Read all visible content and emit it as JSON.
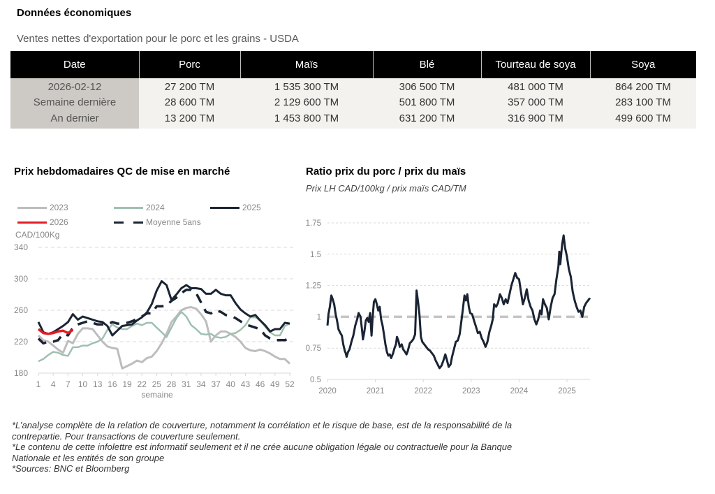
{
  "section_title": "Données économiques",
  "table": {
    "subtitle": "Ventes nettes d'exportation pour le porc et les grains - USDA",
    "headers": [
      "Date",
      "Porc",
      "Maïs",
      "Blé",
      "Tourteau de soya",
      "Soya"
    ],
    "rows": [
      [
        "2026-02-12",
        "27 200 TM",
        "1 535 300 TM",
        "306 500 TM",
        "481 000 TM",
        "864 200 TM"
      ],
      [
        "Semaine dernière",
        "28 600 TM",
        "2 129 600 TM",
        "501 800 TM",
        "357 000 TM",
        "283 100 TM"
      ],
      [
        "An dernier",
        "13 200 TM",
        "1 453 800 TM",
        "631 200 TM",
        "316 900 TM",
        "499 600 TM"
      ]
    ]
  },
  "colors": {
    "series_2023": "#bdbdbd",
    "series_2024": "#9fc0b0",
    "series_2025": "#1a2433",
    "series_2026": "#e31b23",
    "avg_5y": "#1a2433",
    "ref_line": "#c4c4c4",
    "grid": "#d9d9d9",
    "tick_text": "#888888"
  },
  "chart_data": [
    {
      "type": "line",
      "title": "Prix hebdomadaires QC de mise en marché",
      "ylabel": "CAD/100Kg",
      "xlabel": "semaine",
      "ylim": [
        180,
        340
      ],
      "yticks": [
        "340",
        "300",
        "260",
        "220",
        "180"
      ],
      "ytick_values": [
        340,
        300,
        260,
        220,
        180
      ],
      "xlim": [
        1,
        52
      ],
      "xticks": [
        "1",
        "4",
        "7",
        "10",
        "13",
        "16",
        "19",
        "22",
        "25",
        "28",
        "31",
        "34",
        "37",
        "40",
        "43",
        "46",
        "49",
        "52"
      ],
      "xtick_values": [
        1,
        4,
        7,
        10,
        13,
        16,
        19,
        22,
        25,
        28,
        31,
        34,
        37,
        40,
        43,
        46,
        49,
        52
      ],
      "grid": true,
      "legend": [
        {
          "label": "2023",
          "key": "s2023"
        },
        {
          "label": "2024",
          "key": "s2024"
        },
        {
          "label": "2025",
          "key": "s2025"
        },
        {
          "label": "2026",
          "key": "s2026"
        },
        {
          "label": "Moyenne 5ans",
          "key": "avg"
        }
      ],
      "legend_position": "top",
      "series": [
        {
          "name": "2023",
          "key": "s2023",
          "style": "solid",
          "start_week": 1,
          "values": [
            228,
            222,
            220,
            215,
            210,
            206,
            221,
            218,
            230,
            237,
            237,
            236,
            228,
            220,
            214,
            212,
            211,
            186,
            189,
            192,
            196,
            194,
            199,
            201,
            208,
            218,
            230,
            245,
            252,
            260,
            263,
            264,
            262,
            255,
            246,
            220,
            228,
            233,
            233,
            230,
            226,
            220,
            212,
            209,
            208,
            210,
            208,
            205,
            201,
            198,
            198,
            192
          ]
        },
        {
          "name": "2024",
          "key": "s2024",
          "style": "solid",
          "start_week": 1,
          "values": [
            195,
            198,
            203,
            207,
            206,
            203,
            202,
            213,
            213,
            215,
            215,
            218,
            220,
            224,
            235,
            242,
            238,
            236,
            236,
            240,
            243,
            241,
            244,
            244,
            238,
            232,
            226,
            238,
            250,
            258,
            252,
            241,
            236,
            230,
            229,
            230,
            226,
            225,
            226,
            230,
            231,
            235,
            241,
            251,
            251,
            247,
            239,
            232,
            228,
            228,
            240,
            243
          ]
        },
        {
          "name": "2025",
          "key": "s2025",
          "style": "solid",
          "start_week": 1,
          "values": [
            245,
            232,
            230,
            232,
            236,
            240,
            245,
            255,
            248,
            252,
            250,
            248,
            246,
            245,
            240,
            228,
            234,
            240,
            241,
            242,
            247,
            251,
            257,
            268,
            285,
            297,
            292,
            273,
            280,
            288,
            292,
            288,
            288,
            287,
            281,
            281,
            286,
            281,
            279,
            279,
            269,
            261,
            256,
            252,
            254,
            247,
            241,
            233,
            236,
            236,
            244,
            243
          ]
        },
        {
          "name": "2026",
          "key": "s2026",
          "style": "solid",
          "start_week": 1,
          "values": [
            236,
            231,
            230,
            231,
            233,
            234,
            231,
            235
          ]
        },
        {
          "name": "Moyenne 5ans",
          "key": "avg",
          "style": "dashed",
          "start_week": 1,
          "values": [
            224,
            218,
            220,
            220,
            222,
            230,
            228,
            238,
            242,
            244,
            246,
            244,
            242,
            242,
            242,
            245,
            243,
            243,
            244,
            246,
            249,
            252,
            256,
            256,
            265,
            265,
            266,
            272,
            276,
            282,
            286,
            286,
            282,
            270,
            258,
            256,
            260,
            258,
            254,
            253,
            250,
            246,
            242,
            240,
            238,
            236,
            228,
            224,
            222,
            222,
            222,
            224
          ]
        }
      ]
    },
    {
      "type": "line",
      "title": "Ratio prix du porc / prix du maïs",
      "subtitle": "Prix LH CAD/100kg / prix maïs CAD/TM",
      "ylim": [
        0.5,
        1.75
      ],
      "yticks": [
        "1.75",
        "1.5",
        "1.25",
        "1",
        "0.75",
        "0.5"
      ],
      "ytick_values": [
        1.75,
        1.5,
        1.25,
        1,
        0.75,
        0.5
      ],
      "xlim": [
        2020,
        2025.48
      ],
      "xticks": [
        "2020",
        "2021",
        "2022",
        "2023",
        "2024",
        "2025"
      ],
      "xtick_values": [
        2020,
        2021,
        2022,
        2023,
        2024,
        2025
      ],
      "grid": true,
      "reference_line": {
        "value": 1,
        "style": "dashed"
      },
      "series": [
        {
          "name": "Ratio porc/maïs",
          "style": "solid",
          "points": [
            [
              2020.0,
              0.93
            ],
            [
              2020.02,
              1.02
            ],
            [
              2020.05,
              1.08
            ],
            [
              2020.08,
              1.17
            ],
            [
              2020.11,
              1.14
            ],
            [
              2020.14,
              1.1
            ],
            [
              2020.17,
              1.02
            ],
            [
              2020.2,
              0.97
            ],
            [
              2020.23,
              0.9
            ],
            [
              2020.27,
              0.87
            ],
            [
              2020.3,
              0.85
            ],
            [
              2020.33,
              0.78
            ],
            [
              2020.36,
              0.73
            ],
            [
              2020.38,
              0.71
            ],
            [
              2020.4,
              0.68
            ],
            [
              2020.43,
              0.72
            ],
            [
              2020.46,
              0.74
            ],
            [
              2020.5,
              0.8
            ],
            [
              2020.54,
              0.85
            ],
            [
              2020.58,
              0.93
            ],
            [
              2020.62,
              0.98
            ],
            [
              2020.65,
              1.03
            ],
            [
              2020.69,
              1.0
            ],
            [
              2020.72,
              0.9
            ],
            [
              2020.74,
              0.82
            ],
            [
              2020.77,
              0.88
            ],
            [
              2020.8,
              0.97
            ],
            [
              2020.83,
              0.99
            ],
            [
              2020.86,
              0.96
            ],
            [
              2020.89,
              1.03
            ],
            [
              2020.92,
              0.85
            ],
            [
              2020.94,
              0.98
            ],
            [
              2020.97,
              1.12
            ],
            [
              2021.0,
              1.14
            ],
            [
              2021.03,
              1.1
            ],
            [
              2021.06,
              1.05
            ],
            [
              2021.09,
              1.08
            ],
            [
              2021.12,
              0.98
            ],
            [
              2021.15,
              0.93
            ],
            [
              2021.18,
              0.86
            ],
            [
              2021.21,
              0.78
            ],
            [
              2021.24,
              0.72
            ],
            [
              2021.27,
              0.69
            ],
            [
              2021.3,
              0.7
            ],
            [
              2021.33,
              0.67
            ],
            [
              2021.37,
              0.71
            ],
            [
              2021.4,
              0.75
            ],
            [
              2021.43,
              0.78
            ],
            [
              2021.45,
              0.84
            ],
            [
              2021.48,
              0.81
            ],
            [
              2021.51,
              0.76
            ],
            [
              2021.55,
              0.78
            ],
            [
              2021.58,
              0.74
            ],
            [
              2021.62,
              0.72
            ],
            [
              2021.65,
              0.7
            ],
            [
              2021.68,
              0.73
            ],
            [
              2021.72,
              0.79
            ],
            [
              2021.75,
              0.8
            ],
            [
              2021.79,
              0.82
            ],
            [
              2021.83,
              0.86
            ],
            [
              2021.86,
              1.21
            ],
            [
              2021.89,
              1.12
            ],
            [
              2021.92,
              1.02
            ],
            [
              2021.95,
              0.84
            ],
            [
              2021.98,
              0.8
            ],
            [
              2022.02,
              0.78
            ],
            [
              2022.06,
              0.76
            ],
            [
              2022.1,
              0.74
            ],
            [
              2022.14,
              0.73
            ],
            [
              2022.18,
              0.71
            ],
            [
              2022.22,
              0.69
            ],
            [
              2022.26,
              0.65
            ],
            [
              2022.3,
              0.62
            ],
            [
              2022.34,
              0.59
            ],
            [
              2022.38,
              0.61
            ],
            [
              2022.42,
              0.65
            ],
            [
              2022.46,
              0.7
            ],
            [
              2022.49,
              0.66
            ],
            [
              2022.53,
              0.6
            ],
            [
              2022.57,
              0.62
            ],
            [
              2022.6,
              0.68
            ],
            [
              2022.64,
              0.74
            ],
            [
              2022.68,
              0.8
            ],
            [
              2022.72,
              0.81
            ],
            [
              2022.76,
              0.86
            ],
            [
              2022.8,
              0.98
            ],
            [
              2022.83,
              1.07
            ],
            [
              2022.86,
              1.17
            ],
            [
              2022.89,
              1.13
            ],
            [
              2022.92,
              1.18
            ],
            [
              2022.95,
              1.08
            ],
            [
              2022.98,
              1.03
            ],
            [
              2023.02,
              1.02
            ],
            [
              2023.06,
              0.97
            ],
            [
              2023.1,
              0.92
            ],
            [
              2023.14,
              0.87
            ],
            [
              2023.18,
              0.88
            ],
            [
              2023.22,
              0.83
            ],
            [
              2023.26,
              0.8
            ],
            [
              2023.3,
              0.76
            ],
            [
              2023.34,
              0.8
            ],
            [
              2023.38,
              0.88
            ],
            [
              2023.42,
              0.93
            ],
            [
              2023.45,
              0.98
            ],
            [
              2023.48,
              1.1
            ],
            [
              2023.52,
              1.08
            ],
            [
              2023.56,
              1.11
            ],
            [
              2023.6,
              1.18
            ],
            [
              2023.64,
              1.15
            ],
            [
              2023.68,
              1.1
            ],
            [
              2023.72,
              1.14
            ],
            [
              2023.76,
              1.11
            ],
            [
              2023.8,
              1.18
            ],
            [
              2023.84,
              1.25
            ],
            [
              2023.88,
              1.3
            ],
            [
              2023.92,
              1.35
            ],
            [
              2023.96,
              1.31
            ],
            [
              2024.0,
              1.3
            ],
            [
              2024.04,
              1.2
            ],
            [
              2024.08,
              1.1
            ],
            [
              2024.12,
              1.15
            ],
            [
              2024.16,
              1.22
            ],
            [
              2024.2,
              1.13
            ],
            [
              2024.24,
              1.08
            ],
            [
              2024.28,
              1.05
            ],
            [
              2024.32,
              0.98
            ],
            [
              2024.36,
              0.94
            ],
            [
              2024.4,
              0.98
            ],
            [
              2024.44,
              1.05
            ],
            [
              2024.47,
              1.02
            ],
            [
              2024.5,
              1.14
            ],
            [
              2024.54,
              1.1
            ],
            [
              2024.58,
              1.07
            ],
            [
              2024.62,
              0.98
            ],
            [
              2024.66,
              1.08
            ],
            [
              2024.7,
              1.15
            ],
            [
              2024.74,
              1.18
            ],
            [
              2024.78,
              1.3
            ],
            [
              2024.82,
              1.4
            ],
            [
              2024.84,
              1.52
            ],
            [
              2024.86,
              1.42
            ],
            [
              2024.9,
              1.58
            ],
            [
              2024.93,
              1.65
            ],
            [
              2024.96,
              1.55
            ],
            [
              2025.0,
              1.48
            ],
            [
              2025.04,
              1.38
            ],
            [
              2025.08,
              1.32
            ],
            [
              2025.12,
              1.2
            ],
            [
              2025.16,
              1.13
            ],
            [
              2025.2,
              1.08
            ],
            [
              2025.24,
              1.04
            ],
            [
              2025.28,
              1.05
            ],
            [
              2025.32,
              1.0
            ],
            [
              2025.36,
              1.08
            ],
            [
              2025.4,
              1.11
            ],
            [
              2025.44,
              1.13
            ],
            [
              2025.48,
              1.15
            ]
          ]
        }
      ]
    }
  ],
  "footnotes": [
    "*L’analyse complète de la relation de couverture, notamment la corrélation et le risque de base, est de la responsabilité de la contrepartie. Pour transactions de couverture seulement.",
    "*Le contenu de cette infolettre est informatif seulement et il ne crée aucune obligation légale ou contractuelle pour la Banque Nationale et les entités de son groupe",
    "*Sources: BNC et Bloomberg"
  ]
}
